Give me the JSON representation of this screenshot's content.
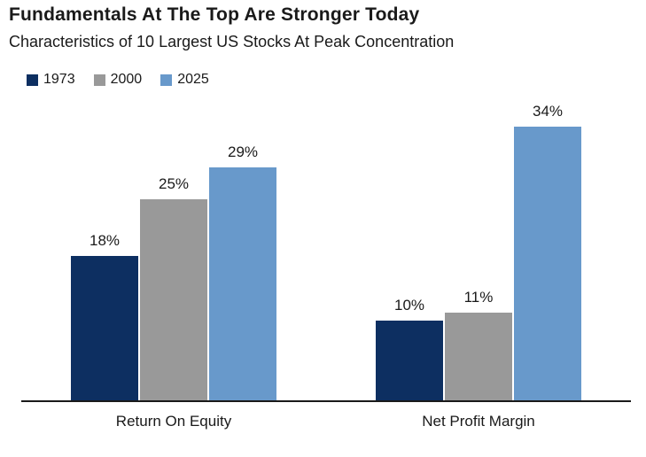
{
  "header": {
    "title": "Fundamentals At The Top Are Stronger Today",
    "subtitle": "Characteristics of 10 Largest US Stocks At Peak Concentration"
  },
  "colors": {
    "series_1973": "#0d2f61",
    "series_2000": "#999999",
    "series_2025": "#6899cb",
    "text": "#1a1a1a",
    "axis": "#1a1a1a",
    "background": "#ffffff"
  },
  "chart_data": {
    "type": "bar",
    "title": "Fundamentals At The Top Are Stronger Today",
    "subtitle": "Characteristics of 10 Largest US Stocks At Peak Concentration",
    "categories": [
      "Return On Equity",
      "Net Profit Margin"
    ],
    "series": [
      {
        "name": "1973",
        "color": "#0d2f61",
        "values": [
          18,
          10
        ],
        "labels": [
          "18%",
          "10%"
        ]
      },
      {
        "name": "2000",
        "color": "#999999",
        "values": [
          25,
          11
        ],
        "labels": [
          "25%",
          "11%"
        ]
      },
      {
        "name": "2025",
        "color": "#6899cb",
        "values": [
          29,
          34
        ],
        "labels": [
          "29%",
          "34%"
        ]
      }
    ],
    "value_format": "percent",
    "ylim": [
      0,
      34
    ],
    "grid": false,
    "y_axis_visible": false,
    "legend_position": "top-left",
    "data_labels_position": "above-bars"
  }
}
